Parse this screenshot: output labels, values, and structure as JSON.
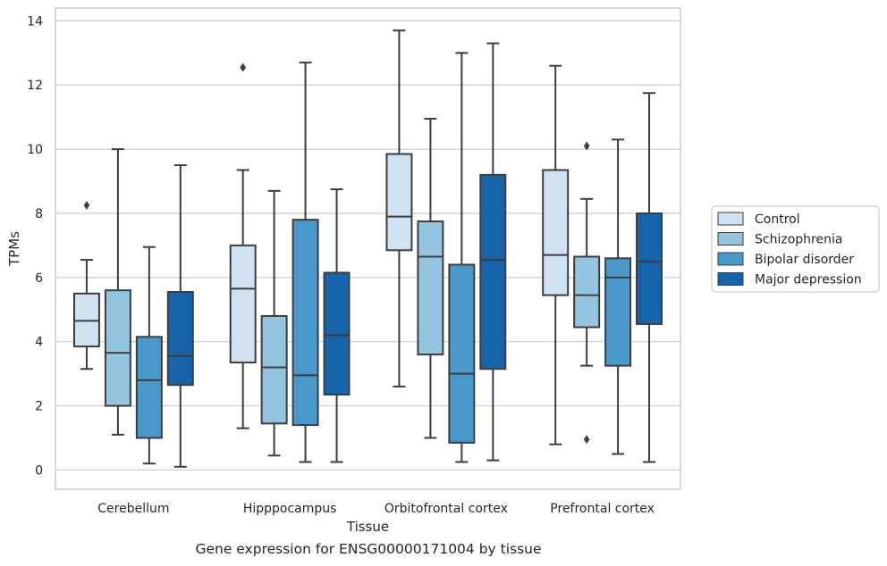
{
  "caption": "Gene expression for ENSG00000171004 by tissue",
  "chart_data": {
    "type": "box",
    "xlabel": "Tissue",
    "ylabel": "TPMs",
    "ylim": [
      -0.6,
      14.4
    ],
    "yticks": [
      0,
      2,
      4,
      6,
      8,
      10,
      12,
      14
    ],
    "grid": true,
    "legend_position": "right",
    "categories": [
      "Cerebellum",
      "Hipppocampus",
      "Orbitofrontal cortex",
      "Prefrontal cortex"
    ],
    "series": [
      {
        "name": "Control",
        "color": "#d0e1f2",
        "boxes": [
          {
            "whislo": 3.15,
            "q1": 3.85,
            "med": 4.65,
            "q3": 5.5,
            "whishi": 6.55,
            "fliers": [
              8.25
            ]
          },
          {
            "whislo": 1.3,
            "q1": 3.35,
            "med": 5.65,
            "q3": 7.0,
            "whishi": 9.35,
            "fliers": [
              12.55
            ]
          },
          {
            "whislo": 2.6,
            "q1": 6.85,
            "med": 7.9,
            "q3": 9.85,
            "whishi": 13.7,
            "fliers": []
          },
          {
            "whislo": 0.8,
            "q1": 5.45,
            "med": 6.7,
            "q3": 9.35,
            "whishi": 12.6,
            "fliers": []
          }
        ]
      },
      {
        "name": "Schizophrenia",
        "color": "#94c4df",
        "boxes": [
          {
            "whislo": 1.1,
            "q1": 2.0,
            "med": 3.65,
            "q3": 5.6,
            "whishi": 10.0,
            "fliers": []
          },
          {
            "whislo": 0.45,
            "q1": 1.45,
            "med": 3.2,
            "q3": 4.8,
            "whishi": 8.7,
            "fliers": []
          },
          {
            "whislo": 1.0,
            "q1": 3.6,
            "med": 6.65,
            "q3": 7.75,
            "whishi": 10.95,
            "fliers": []
          },
          {
            "whislo": 3.25,
            "q1": 4.45,
            "med": 5.45,
            "q3": 6.65,
            "whishi": 8.45,
            "fliers": [
              10.1,
              0.95
            ]
          }
        ]
      },
      {
        "name": "Bipolar disorder",
        "color": "#4a98c9",
        "boxes": [
          {
            "whislo": 0.2,
            "q1": 1.0,
            "med": 2.8,
            "q3": 4.15,
            "whishi": 6.95,
            "fliers": []
          },
          {
            "whislo": 0.25,
            "q1": 1.4,
            "med": 2.95,
            "q3": 7.8,
            "whishi": 12.7,
            "fliers": []
          },
          {
            "whislo": 0.25,
            "q1": 0.85,
            "med": 3.0,
            "q3": 6.4,
            "whishi": 13.0,
            "fliers": []
          },
          {
            "whislo": 0.5,
            "q1": 3.25,
            "med": 6.0,
            "q3": 6.6,
            "whishi": 10.3,
            "fliers": []
          }
        ]
      },
      {
        "name": "Major depression",
        "color": "#1764ab",
        "boxes": [
          {
            "whislo": 0.1,
            "q1": 2.65,
            "med": 3.55,
            "q3": 5.55,
            "whishi": 9.5,
            "fliers": []
          },
          {
            "whislo": 0.25,
            "q1": 2.35,
            "med": 4.2,
            "q3": 6.15,
            "whishi": 8.75,
            "fliers": []
          },
          {
            "whislo": 0.3,
            "q1": 3.15,
            "med": 6.55,
            "q3": 9.2,
            "whishi": 13.3,
            "fliers": []
          },
          {
            "whislo": 0.25,
            "q1": 4.55,
            "med": 6.5,
            "q3": 8.0,
            "whishi": 11.75,
            "fliers": []
          }
        ]
      }
    ]
  }
}
